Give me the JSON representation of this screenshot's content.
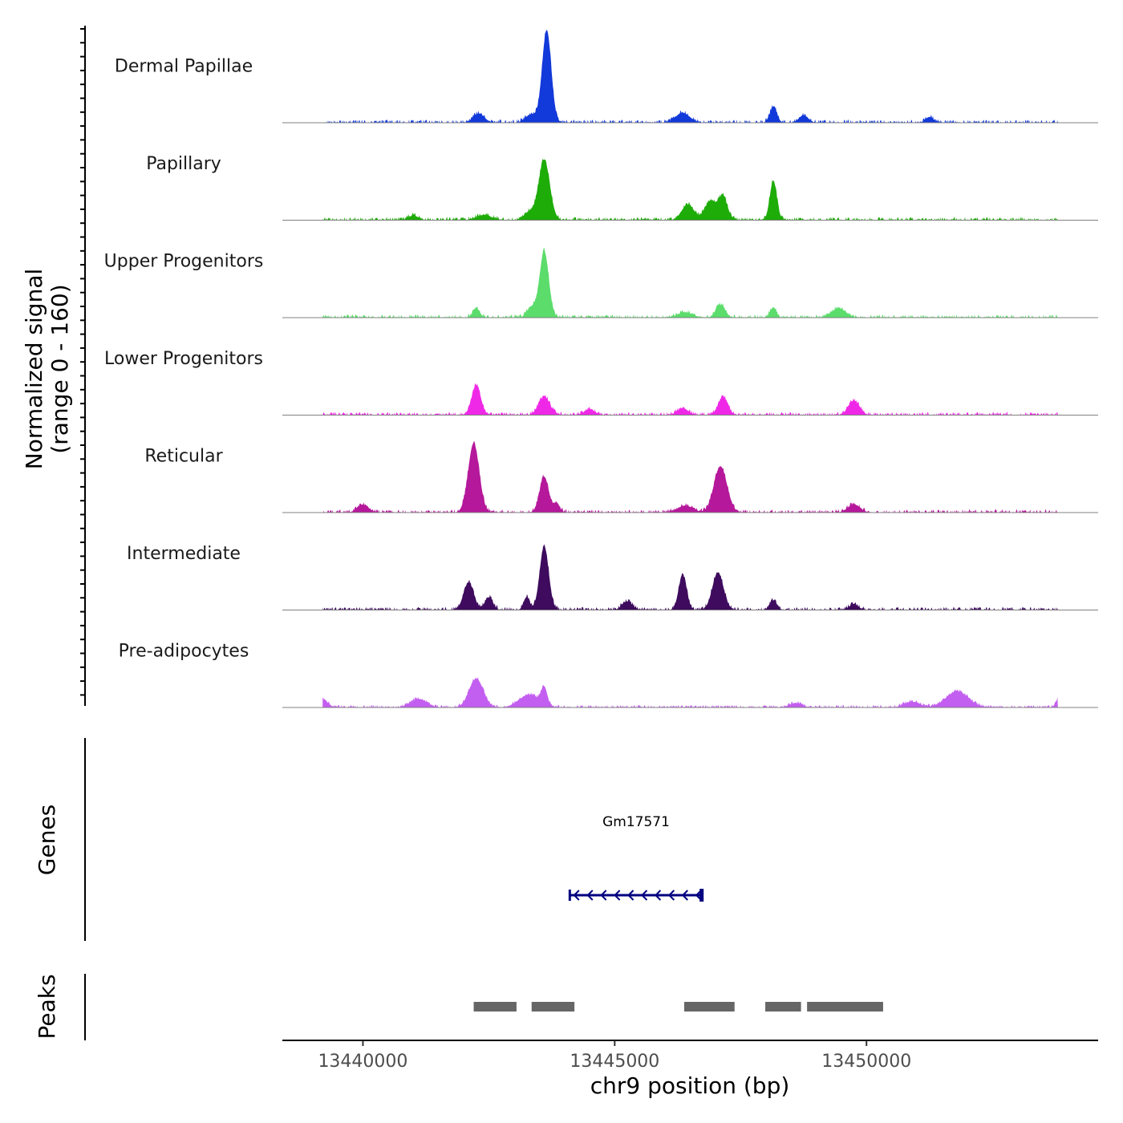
{
  "chart_data": {
    "type": "area",
    "title": "",
    "xlabel": "chr9 position (bp)",
    "ylabel_line1": "Normalized signal",
    "ylabel_line2": "(range 0 - 160)",
    "xlim": [
      13438400,
      13454600
    ],
    "ylim": [
      0,
      160
    ],
    "x_ticks": [
      13440000,
      13445000,
      13450000
    ],
    "x_tick_labels": [
      "13440000",
      "13445000",
      "13450000"
    ],
    "tracks": [
      {
        "name": "Dermal Papillae",
        "color": "#1239d9",
        "peaks": [
          {
            "x": 13443650,
            "h": 160,
            "w": 90
          },
          {
            "x": 13443350,
            "h": 14,
            "w": 120
          },
          {
            "x": 13442300,
            "h": 16,
            "w": 110
          },
          {
            "x": 13446350,
            "h": 17,
            "w": 140
          },
          {
            "x": 13448150,
            "h": 27,
            "w": 70
          },
          {
            "x": 13448750,
            "h": 13,
            "w": 90
          },
          {
            "x": 13451250,
            "h": 10,
            "w": 80
          }
        ]
      },
      {
        "name": "Papillary",
        "color": "#1eac09",
        "peaks": [
          {
            "x": 13443600,
            "h": 105,
            "w": 110
          },
          {
            "x": 13443300,
            "h": 14,
            "w": 100
          },
          {
            "x": 13446450,
            "h": 27,
            "w": 120
          },
          {
            "x": 13446900,
            "h": 33,
            "w": 110
          },
          {
            "x": 13447150,
            "h": 40,
            "w": 90
          },
          {
            "x": 13448150,
            "h": 68,
            "w": 70
          },
          {
            "x": 13441000,
            "h": 8,
            "w": 100
          },
          {
            "x": 13442400,
            "h": 9,
            "w": 150
          }
        ]
      },
      {
        "name": "Upper Progenitors",
        "color": "#5bdc6b",
        "peaks": [
          {
            "x": 13443600,
            "h": 115,
            "w": 90
          },
          {
            "x": 13443350,
            "h": 18,
            "w": 90
          },
          {
            "x": 13442250,
            "h": 16,
            "w": 70
          },
          {
            "x": 13447100,
            "h": 22,
            "w": 90
          },
          {
            "x": 13448150,
            "h": 17,
            "w": 60
          },
          {
            "x": 13449450,
            "h": 16,
            "w": 140
          },
          {
            "x": 13446400,
            "h": 9,
            "w": 150
          }
        ]
      },
      {
        "name": "Lower Progenitors",
        "color": "#ef28e7",
        "peaks": [
          {
            "x": 13442250,
            "h": 52,
            "w": 90
          },
          {
            "x": 13443600,
            "h": 32,
            "w": 110
          },
          {
            "x": 13447150,
            "h": 32,
            "w": 90
          },
          {
            "x": 13449750,
            "h": 25,
            "w": 110
          },
          {
            "x": 13446350,
            "h": 12,
            "w": 110
          },
          {
            "x": 13444500,
            "h": 10,
            "w": 100
          }
        ]
      },
      {
        "name": "Reticular",
        "color": "#b5189b",
        "peaks": [
          {
            "x": 13442200,
            "h": 120,
            "w": 110
          },
          {
            "x": 13443600,
            "h": 62,
            "w": 90
          },
          {
            "x": 13447100,
            "h": 80,
            "w": 130
          },
          {
            "x": 13440000,
            "h": 14,
            "w": 110
          },
          {
            "x": 13449750,
            "h": 14,
            "w": 120
          },
          {
            "x": 13443850,
            "h": 16,
            "w": 60
          },
          {
            "x": 13446400,
            "h": 12,
            "w": 150
          }
        ]
      },
      {
        "name": "Intermediate",
        "color": "#3e0b5e",
        "peaks": [
          {
            "x": 13443600,
            "h": 110,
            "w": 90
          },
          {
            "x": 13442100,
            "h": 48,
            "w": 100
          },
          {
            "x": 13442500,
            "h": 22,
            "w": 80
          },
          {
            "x": 13443250,
            "h": 22,
            "w": 60
          },
          {
            "x": 13446350,
            "h": 60,
            "w": 80
          },
          {
            "x": 13447050,
            "h": 65,
            "w": 110
          },
          {
            "x": 13445250,
            "h": 15,
            "w": 100
          },
          {
            "x": 13448150,
            "h": 17,
            "w": 70
          },
          {
            "x": 13449750,
            "h": 10,
            "w": 90
          }
        ]
      },
      {
        "name": "Pre-adipocytes",
        "color": "#c35ff0",
        "peaks": [
          {
            "x": 13442250,
            "h": 50,
            "w": 140
          },
          {
            "x": 13443300,
            "h": 22,
            "w": 200
          },
          {
            "x": 13443600,
            "h": 30,
            "w": 60
          },
          {
            "x": 13441100,
            "h": 15,
            "w": 160
          },
          {
            "x": 13439200,
            "h": 14,
            "w": 100
          },
          {
            "x": 13451800,
            "h": 28,
            "w": 220
          },
          {
            "x": 13450900,
            "h": 10,
            "w": 150
          },
          {
            "x": 13448600,
            "h": 8,
            "w": 120
          },
          {
            "x": 13453800,
            "h": 14,
            "w": 50
          }
        ]
      }
    ],
    "gene": {
      "name": "Gm17571",
      "start": 13444100,
      "end": 13446750,
      "strand": "-",
      "color": "#000080"
    },
    "peak_regions": [
      [
        13442200,
        13443050
      ],
      [
        13443350,
        13444200
      ],
      [
        13446380,
        13447380
      ],
      [
        13447990,
        13448700
      ],
      [
        13448820,
        13450330
      ]
    ],
    "y_panel_labels": {
      "genes": "Genes",
      "peaks": "Peaks"
    },
    "peak_color": "#666666",
    "baseline_color": "#808080"
  }
}
